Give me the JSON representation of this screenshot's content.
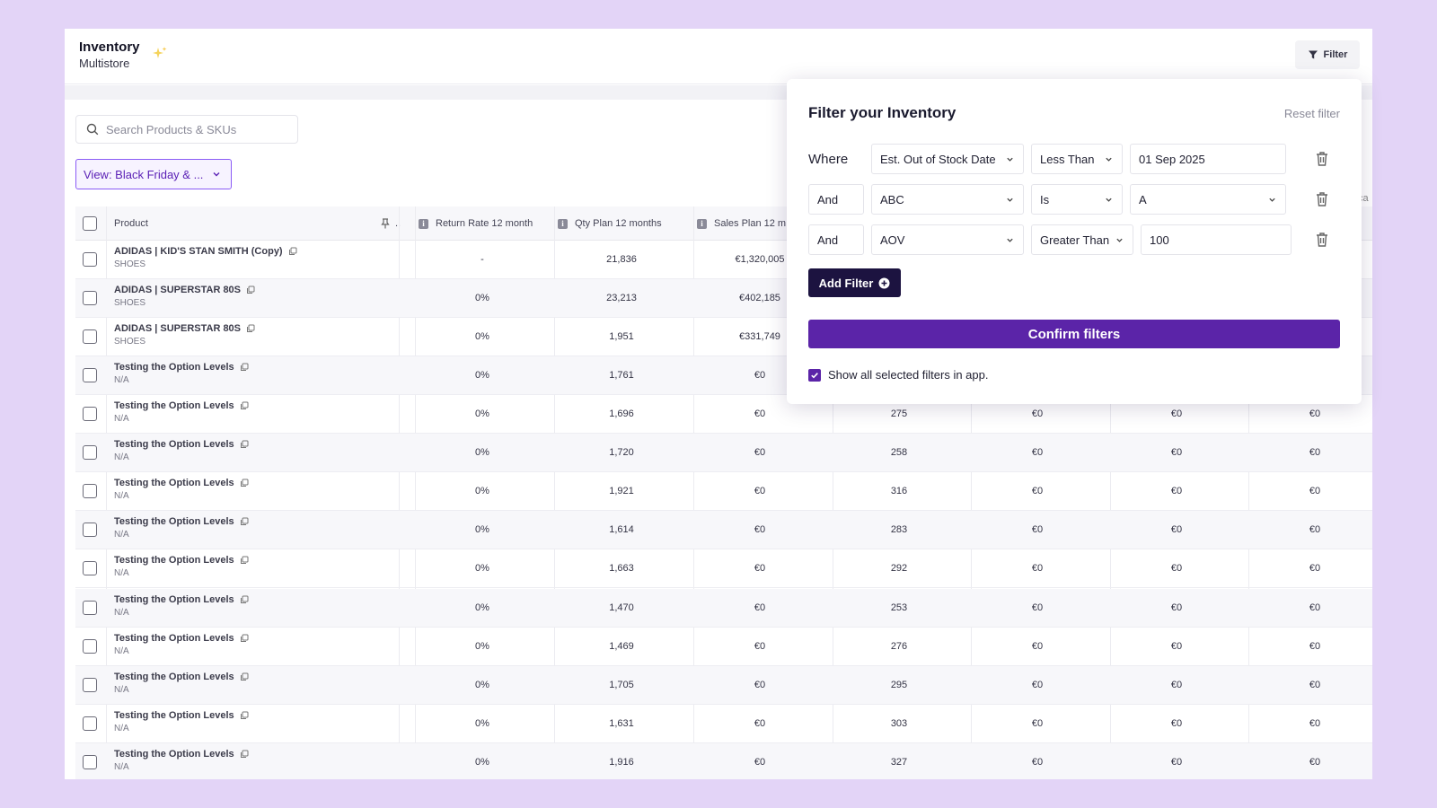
{
  "header": {
    "title": "Inventory",
    "subtitle": "Multistore",
    "filter_label": "Filter"
  },
  "search": {
    "placeholder": "Search Products & SKUs"
  },
  "view": {
    "label": "View: Black Friday & ..."
  },
  "columns": {
    "product": "Product",
    "ellipsis": "..",
    "return_rate": "Return Rate 12 month",
    "qty_plan": "Qty Plan 12 months",
    "sales_plan": "Sales Plan 12 m",
    "partial_right": "ca"
  },
  "rows": [
    {
      "name": "ADIDAS | KID'S STAN SMITH (Copy)",
      "cat": "SHOES",
      "rr": "-",
      "qty": "21,836",
      "sales": "€1,320,005",
      "c5": "",
      "c6": "",
      "c7": "",
      "c8": ""
    },
    {
      "name": "ADIDAS | SUPERSTAR 80S",
      "cat": "SHOES",
      "rr": "0%",
      "qty": "23,213",
      "sales": "€402,185",
      "c5": "",
      "c6": "",
      "c7": "",
      "c8": ""
    },
    {
      "name": "ADIDAS | SUPERSTAR 80S",
      "cat": "SHOES",
      "rr": "0%",
      "qty": "1,951",
      "sales": "€331,749",
      "c5": "",
      "c6": "",
      "c7": "",
      "c8": ""
    },
    {
      "name": "Testing the Option Levels",
      "cat": "N/A",
      "rr": "0%",
      "qty": "1,761",
      "sales": "€0",
      "c5": "",
      "c6": "",
      "c7": "",
      "c8": ""
    },
    {
      "name": "Testing the Option Levels",
      "cat": "N/A",
      "rr": "0%",
      "qty": "1,696",
      "sales": "€0",
      "c5": "275",
      "c6": "€0",
      "c7": "€0",
      "c8": "€0"
    },
    {
      "name": "Testing the Option Levels",
      "cat": "N/A",
      "rr": "0%",
      "qty": "1,720",
      "sales": "€0",
      "c5": "258",
      "c6": "€0",
      "c7": "€0",
      "c8": "€0"
    },
    {
      "name": "Testing the Option Levels",
      "cat": "N/A",
      "rr": "0%",
      "qty": "1,921",
      "sales": "€0",
      "c5": "316",
      "c6": "€0",
      "c7": "€0",
      "c8": "€0"
    },
    {
      "name": "Testing the Option Levels",
      "cat": "N/A",
      "rr": "0%",
      "qty": "1,614",
      "sales": "€0",
      "c5": "283",
      "c6": "€0",
      "c7": "€0",
      "c8": "€0"
    },
    {
      "name": "Testing the Option Levels",
      "cat": "N/A",
      "rr": "0%",
      "qty": "1,663",
      "sales": "€0",
      "c5": "292",
      "c6": "€0",
      "c7": "€0",
      "c8": "€0"
    },
    {
      "name": "Testing the Option Levels",
      "cat": "N/A",
      "rr": "0%",
      "qty": "1,470",
      "sales": "€0",
      "c5": "253",
      "c6": "€0",
      "c7": "€0",
      "c8": "€0"
    },
    {
      "name": "Testing the Option Levels",
      "cat": "N/A",
      "rr": "0%",
      "qty": "1,469",
      "sales": "€0",
      "c5": "276",
      "c6": "€0",
      "c7": "€0",
      "c8": "€0"
    },
    {
      "name": "Testing the Option Levels",
      "cat": "N/A",
      "rr": "0%",
      "qty": "1,705",
      "sales": "€0",
      "c5": "295",
      "c6": "€0",
      "c7": "€0",
      "c8": "€0"
    },
    {
      "name": "Testing the Option Levels",
      "cat": "N/A",
      "rr": "0%",
      "qty": "1,631",
      "sales": "€0",
      "c5": "303",
      "c6": "€0",
      "c7": "€0",
      "c8": "€0"
    },
    {
      "name": "Testing the Option Levels",
      "cat": "N/A",
      "rr": "0%",
      "qty": "1,916",
      "sales": "€0",
      "c5": "327",
      "c6": "€0",
      "c7": "€0",
      "c8": "€0"
    }
  ],
  "filter_panel": {
    "title": "Filter your Inventory",
    "reset": "Reset filter",
    "filters": [
      {
        "conj": "Where",
        "field": "Est. Out of Stock Date",
        "op": "Less Than",
        "value": "01 Sep 2025"
      },
      {
        "conj": "And",
        "field": "ABC",
        "op": "Is",
        "value": "A"
      },
      {
        "conj": "And",
        "field": "AOV",
        "op": "Greater Than",
        "value": "100"
      }
    ],
    "add_filter": "Add Filter",
    "confirm": "Confirm filters",
    "show_all": "Show all selected filters in app."
  },
  "colors": {
    "accent": "#5b24a8",
    "dark": "#1c1340",
    "background": "#e3d4f7"
  }
}
